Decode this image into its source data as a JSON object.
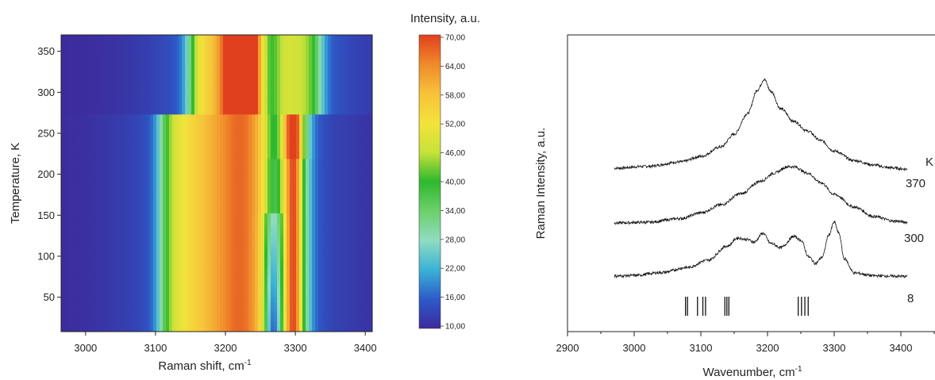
{
  "chart_data": [
    {
      "type": "heatmap",
      "xlabel": "Raman shift, cm",
      "xlabel_sup": "-1",
      "ylabel": "Temperature, K",
      "xlim": [
        2965,
        3410
      ],
      "ylim": [
        8,
        370
      ],
      "xticks": [
        "3000",
        "3100",
        "3200",
        "3300",
        "3400"
      ],
      "yticks": [
        "50",
        "100",
        "150",
        "200",
        "250",
        "300",
        "350"
      ],
      "colorbar": {
        "title": "Intensity, a.u.",
        "min": 10,
        "max": 70,
        "ticks": [
          "70,00",
          "64,00",
          "58,00",
          "52,00",
          "46,00",
          "40,00",
          "34,00",
          "28,00",
          "22,00",
          "16,00",
          "10,00"
        ],
        "colors": [
          "#3d2a9c",
          "#2c5bc9",
          "#3ab3d6",
          "#8fdcc0",
          "#6cd06a",
          "#2eb82e",
          "#c7e23a",
          "#f3e33b",
          "#f6c23a",
          "#f08a2a",
          "#e0401e"
        ]
      },
      "phase_transition_K": 275,
      "regions": {
        "high_temperature": {
          "range_K": [
            275,
            370
          ],
          "peaks": [
            {
              "center": 3190,
              "width": 60,
              "intensity": 50
            },
            {
              "center": 3225,
              "width": 18,
              "intensity": 70
            },
            {
              "center": 3300,
              "width": 45,
              "intensity": 38
            }
          ]
        },
        "low_temperature": {
          "range_K": [
            8,
            275
          ],
          "peaks": [
            {
              "center": 3185,
              "width": 55,
              "intensity": 52
            },
            {
              "center": 3230,
              "width": 25,
              "intensity": 44
            },
            {
              "center": 3298,
              "width": 10,
              "intensity": 62
            }
          ],
          "dip_center": 3268
        }
      }
    },
    {
      "type": "line",
      "xlabel": "Wavenumber, cm",
      "xlabel_sup": "-1",
      "ylabel": "Raman Intensity, a.u.",
      "xlim": [
        2900,
        3450
      ],
      "xticks": [
        "2900",
        "3000",
        "3100",
        "3200",
        "3300",
        "3400"
      ],
      "legend_header": "K",
      "series": [
        {
          "name": "370",
          "x": [
            2970,
            3020,
            3070,
            3100,
            3130,
            3150,
            3170,
            3185,
            3195,
            3205,
            3220,
            3240,
            3260,
            3280,
            3300,
            3330,
            3360,
            3380,
            3410
          ],
          "y": [
            0.88,
            0.94,
            1.08,
            1.25,
            1.55,
            1.95,
            2.6,
            3.35,
            3.68,
            3.3,
            2.75,
            2.35,
            2.05,
            1.75,
            1.42,
            1.12,
            0.98,
            0.9,
            0.85
          ]
        },
        {
          "name": "300",
          "x": [
            2970,
            3020,
            3070,
            3100,
            3130,
            3160,
            3190,
            3210,
            3230,
            3240,
            3260,
            3280,
            3300,
            3330,
            3360,
            3390,
            3410
          ],
          "y": [
            0.28,
            0.3,
            0.42,
            0.6,
            0.85,
            1.2,
            1.6,
            1.85,
            2.05,
            2.05,
            1.85,
            1.55,
            1.18,
            0.78,
            0.48,
            0.34,
            0.3
          ]
        },
        {
          "name": "8",
          "x": [
            2970,
            3000,
            3040,
            3080,
            3110,
            3140,
            3155,
            3170,
            3180,
            3193,
            3205,
            3220,
            3240,
            3250,
            3262,
            3272,
            3282,
            3292,
            3300,
            3307,
            3315,
            3330,
            3360,
            3410
          ],
          "y": [
            0.05,
            0.07,
            0.16,
            0.32,
            0.55,
            1.0,
            1.25,
            1.2,
            1.12,
            1.4,
            1.08,
            0.95,
            1.3,
            1.18,
            0.65,
            0.45,
            0.65,
            1.35,
            1.75,
            1.4,
            0.6,
            0.15,
            0.06,
            0.04
          ]
        }
      ],
      "markers": [
        3077,
        3080,
        3095,
        3103,
        3107,
        3136,
        3139,
        3142,
        3246,
        3251,
        3256,
        3261
      ]
    }
  ]
}
